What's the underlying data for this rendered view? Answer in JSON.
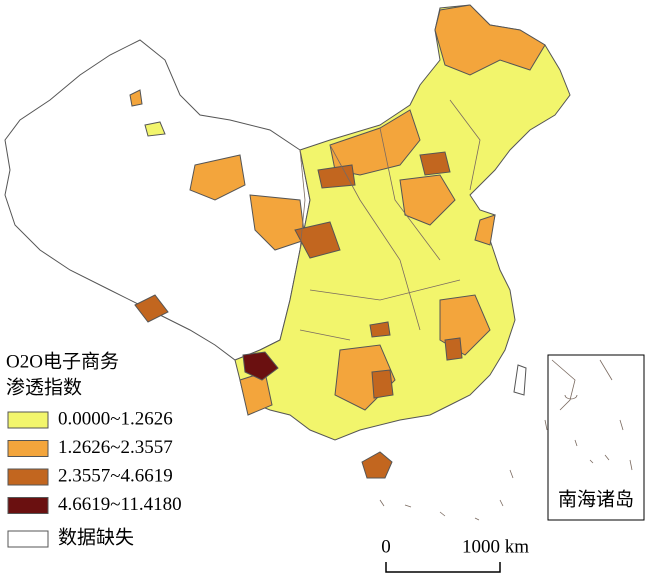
{
  "legend": {
    "title": [
      "O2O电子商务",
      "渗透指数"
    ],
    "items": [
      {
        "label": "0.0000~1.2626",
        "color": "#f2f56c"
      },
      {
        "label": "1.2626~2.3557",
        "color": "#f3a53c"
      },
      {
        "label": "2.3557~4.6619",
        "color": "#c2661f"
      },
      {
        "label": "4.6619~11.4180",
        "color": "#6a1010"
      }
    ],
    "missing": {
      "label": "数据缺失",
      "color": "#ffffff"
    }
  },
  "inset": {
    "label": "南海诸岛"
  },
  "scale": {
    "ticks": [
      "0",
      "1000 km"
    ]
  }
}
